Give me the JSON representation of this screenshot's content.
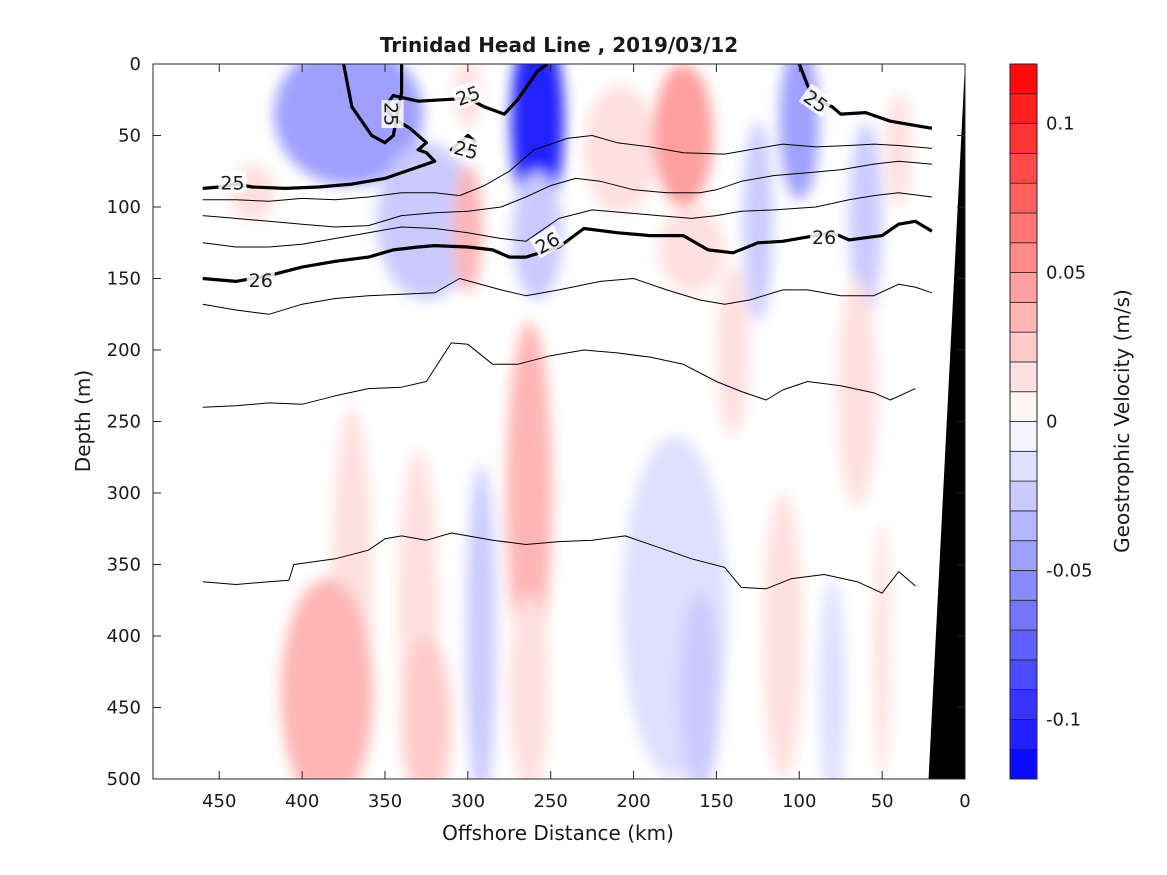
{
  "chart_data": {
    "type": "heatmap",
    "title": "Trinidad Head Line , 2019/03/12",
    "xlabel": "Offshore Distance (km)",
    "ylabel": "Depth (m)",
    "xlim": [
      490,
      0
    ],
    "ylim": [
      0,
      500
    ],
    "x_reversed": true,
    "y_reversed": true,
    "x_ticks": [
      450,
      400,
      350,
      300,
      250,
      200,
      150,
      100,
      50,
      0
    ],
    "y_ticks": [
      0,
      50,
      100,
      150,
      200,
      250,
      300,
      350,
      400,
      450,
      500
    ],
    "colorbar": {
      "label": "Geostrophic Velocity (m/s)",
      "range": [
        -0.12,
        0.12
      ],
      "levels": 24,
      "ticks": [
        {
          "value": 0.1,
          "label": "0.1"
        },
        {
          "value": 0.05,
          "label": "0.05"
        },
        {
          "value": 0,
          "label": "0"
        },
        {
          "value": -0.05,
          "label": "-0.05"
        },
        {
          "value": -0.1,
          "label": "-0.1"
        }
      ],
      "positive_color": "#ff0000",
      "negative_color": "#0000ff",
      "zero_color": "#ffffff"
    },
    "velocity_features": [
      {
        "x": 372,
        "depth": 35,
        "rx": 45,
        "rdepth": 50,
        "value": -0.045
      },
      {
        "x": 325,
        "depth": 110,
        "rx": 30,
        "rdepth": 55,
        "value": -0.02
      },
      {
        "x": 300,
        "depth": 115,
        "rx": 9,
        "rdepth": 45,
        "value": 0.03
      },
      {
        "x": 300,
        "depth": 20,
        "rx": 8,
        "rdepth": 25,
        "value": 0.015
      },
      {
        "x": 258,
        "depth": 40,
        "rx": 16,
        "rdepth": 70,
        "value": -0.1
      },
      {
        "x": 258,
        "depth": 120,
        "rx": 15,
        "rdepth": 45,
        "value": -0.03
      },
      {
        "x": 208,
        "depth": 60,
        "rx": 22,
        "rdepth": 45,
        "value": 0.02
      },
      {
        "x": 170,
        "depth": 50,
        "rx": 18,
        "rdepth": 50,
        "value": 0.05
      },
      {
        "x": 165,
        "depth": 130,
        "rx": 20,
        "rdepth": 30,
        "value": 0.015
      },
      {
        "x": 125,
        "depth": 110,
        "rx": 9,
        "rdepth": 70,
        "value": -0.02
      },
      {
        "x": 100,
        "depth": 40,
        "rx": 12,
        "rdepth": 55,
        "value": -0.04
      },
      {
        "x": 60,
        "depth": 110,
        "rx": 10,
        "rdepth": 70,
        "value": -0.03
      },
      {
        "x": 40,
        "depth": 60,
        "rx": 8,
        "rdepth": 40,
        "value": 0.02
      },
      {
        "x": 263,
        "depth": 300,
        "rx": 14,
        "rdepth": 120,
        "value": 0.035
      },
      {
        "x": 263,
        "depth": 440,
        "rx": 12,
        "rdepth": 70,
        "value": 0.02
      },
      {
        "x": 370,
        "depth": 360,
        "rx": 12,
        "rdepth": 120,
        "value": 0.015
      },
      {
        "x": 385,
        "depth": 440,
        "rx": 28,
        "rdepth": 80,
        "value": 0.03
      },
      {
        "x": 330,
        "depth": 380,
        "rx": 12,
        "rdepth": 110,
        "value": 0.015
      },
      {
        "x": 325,
        "depth": 460,
        "rx": 15,
        "rdepth": 60,
        "value": 0.025
      },
      {
        "x": 292,
        "depth": 400,
        "rx": 9,
        "rdepth": 120,
        "value": -0.02
      },
      {
        "x": 175,
        "depth": 380,
        "rx": 32,
        "rdepth": 120,
        "value": -0.015
      },
      {
        "x": 160,
        "depth": 440,
        "rx": 12,
        "rdepth": 70,
        "value": -0.03
      },
      {
        "x": 110,
        "depth": 400,
        "rx": 12,
        "rdepth": 100,
        "value": 0.02
      },
      {
        "x": 80,
        "depth": 440,
        "rx": 8,
        "rdepth": 80,
        "value": -0.015
      },
      {
        "x": 50,
        "depth": 410,
        "rx": 5,
        "rdepth": 90,
        "value": 0.015
      },
      {
        "x": 140,
        "depth": 200,
        "rx": 10,
        "rdepth": 60,
        "value": 0.015
      },
      {
        "x": 65,
        "depth": 230,
        "rx": 12,
        "rdepth": 80,
        "value": 0.015
      },
      {
        "x": 430,
        "depth": 90,
        "rx": 14,
        "rdepth": 20,
        "value": 0.012
      }
    ],
    "density_contours": [
      {
        "level": "25",
        "bold": true,
        "labeled": true,
        "points": [
          [
            340,
            0
          ],
          [
            340,
            20
          ],
          [
            345,
            50
          ],
          [
            350,
            55
          ],
          [
            358,
            50
          ],
          [
            370,
            30
          ],
          [
            375,
            0
          ]
        ]
      },
      {
        "level": "25",
        "bold": true,
        "labeled": true,
        "points": [
          [
            460,
            87
          ],
          [
            450,
            86
          ],
          [
            440,
            84
          ],
          [
            430,
            86
          ],
          [
            410,
            87
          ],
          [
            390,
            86
          ],
          [
            370,
            84
          ],
          [
            350,
            80
          ],
          [
            330,
            72
          ],
          [
            320,
            68
          ],
          [
            325,
            62
          ],
          [
            330,
            60
          ],
          [
            325,
            55
          ],
          [
            335,
            45
          ],
          [
            345,
            38
          ],
          [
            350,
            30
          ],
          [
            345,
            22
          ],
          [
            330,
            26
          ],
          [
            300,
            24
          ],
          [
            290,
            30
          ],
          [
            278,
            35
          ],
          [
            270,
            25
          ],
          [
            258,
            5
          ],
          [
            252,
            0
          ]
        ]
      },
      {
        "level": "25",
        "bold": true,
        "labeled": true,
        "points": [
          [
            295,
            55
          ],
          [
            300,
            50
          ],
          [
            305,
            55
          ],
          [
            310,
            60
          ],
          [
            295,
            60
          ]
        ]
      },
      {
        "level": "25",
        "bold": true,
        "labeled": true,
        "points": [
          [
            100,
            0
          ],
          [
            95,
            15
          ],
          [
            90,
            25
          ],
          [
            80,
            30
          ],
          [
            75,
            35
          ],
          [
            60,
            34
          ],
          [
            45,
            40
          ],
          [
            35,
            42
          ],
          [
            20,
            45
          ]
        ]
      },
      {
        "level": "26",
        "bold": true,
        "labeled": true,
        "points": [
          [
            460,
            150
          ],
          [
            440,
            152
          ],
          [
            420,
            148
          ],
          [
            400,
            142
          ],
          [
            380,
            138
          ],
          [
            360,
            135
          ],
          [
            345,
            130
          ],
          [
            330,
            128
          ],
          [
            320,
            127
          ],
          [
            300,
            128
          ],
          [
            285,
            130
          ],
          [
            275,
            135
          ],
          [
            265,
            135
          ],
          [
            245,
            128
          ],
          [
            230,
            115
          ],
          [
            210,
            118
          ],
          [
            190,
            120
          ],
          [
            170,
            120
          ],
          [
            155,
            130
          ],
          [
            140,
            132
          ],
          [
            125,
            125
          ],
          [
            110,
            124
          ],
          [
            90,
            120
          ],
          [
            80,
            118
          ],
          [
            70,
            123
          ],
          [
            50,
            120
          ],
          [
            40,
            112
          ],
          [
            30,
            110
          ],
          [
            20,
            117
          ]
        ]
      },
      {
        "level": "",
        "bold": false,
        "labeled": false,
        "points": [
          [
            460,
            95
          ],
          [
            440,
            95
          ],
          [
            420,
            96
          ],
          [
            400,
            94
          ],
          [
            380,
            95
          ],
          [
            360,
            93
          ],
          [
            340,
            90
          ],
          [
            320,
            90
          ],
          [
            305,
            92
          ],
          [
            290,
            85
          ],
          [
            275,
            75
          ],
          [
            260,
            60
          ],
          [
            240,
            52
          ],
          [
            225,
            50
          ],
          [
            210,
            55
          ],
          [
            190,
            58
          ],
          [
            170,
            62
          ],
          [
            145,
            63
          ],
          [
            130,
            60
          ],
          [
            110,
            56
          ],
          [
            90,
            58
          ],
          [
            70,
            57
          ],
          [
            55,
            56
          ],
          [
            40,
            57
          ],
          [
            20,
            59
          ]
        ]
      },
      {
        "level": "",
        "bold": false,
        "labeled": false,
        "points": [
          [
            460,
            106
          ],
          [
            440,
            108
          ],
          [
            420,
            110
          ],
          [
            400,
            112
          ],
          [
            380,
            114
          ],
          [
            360,
            113
          ],
          [
            340,
            106
          ],
          [
            320,
            104
          ],
          [
            300,
            103
          ],
          [
            280,
            100
          ],
          [
            265,
            93
          ],
          [
            250,
            85
          ],
          [
            235,
            80
          ],
          [
            220,
            82
          ],
          [
            200,
            88
          ],
          [
            180,
            90
          ],
          [
            160,
            90
          ],
          [
            150,
            88
          ],
          [
            135,
            82
          ],
          [
            115,
            78
          ],
          [
            95,
            76
          ],
          [
            75,
            74
          ],
          [
            55,
            70
          ],
          [
            40,
            68
          ],
          [
            20,
            70
          ]
        ]
      },
      {
        "level": "",
        "bold": false,
        "labeled": false,
        "points": [
          [
            460,
            125
          ],
          [
            440,
            128
          ],
          [
            420,
            128
          ],
          [
            400,
            126
          ],
          [
            380,
            122
          ],
          [
            360,
            118
          ],
          [
            340,
            114
          ],
          [
            320,
            115
          ],
          [
            300,
            118
          ],
          [
            280,
            122
          ],
          [
            265,
            124
          ],
          [
            245,
            108
          ],
          [
            225,
            102
          ],
          [
            205,
            104
          ],
          [
            185,
            106
          ],
          [
            165,
            108
          ],
          [
            150,
            106
          ],
          [
            135,
            103
          ],
          [
            115,
            102
          ],
          [
            90,
            100
          ],
          [
            70,
            95
          ],
          [
            55,
            92
          ],
          [
            40,
            90
          ],
          [
            20,
            93
          ]
        ]
      },
      {
        "level": "",
        "bold": false,
        "labeled": false,
        "points": [
          [
            460,
            168
          ],
          [
            440,
            172
          ],
          [
            420,
            175
          ],
          [
            400,
            168
          ],
          [
            380,
            164
          ],
          [
            360,
            162
          ],
          [
            340,
            161
          ],
          [
            320,
            160
          ],
          [
            305,
            150
          ],
          [
            280,
            158
          ],
          [
            265,
            162
          ],
          [
            245,
            158
          ],
          [
            220,
            152
          ],
          [
            200,
            150
          ],
          [
            180,
            158
          ],
          [
            160,
            165
          ],
          [
            145,
            168
          ],
          [
            130,
            165
          ],
          [
            110,
            158
          ],
          [
            95,
            158
          ],
          [
            75,
            162
          ],
          [
            55,
            162
          ],
          [
            40,
            154
          ],
          [
            30,
            156
          ],
          [
            20,
            160
          ]
        ]
      },
      {
        "level": "",
        "bold": false,
        "labeled": false,
        "points": [
          [
            460,
            240
          ],
          [
            440,
            239
          ],
          [
            420,
            237
          ],
          [
            400,
            238
          ],
          [
            380,
            232
          ],
          [
            360,
            227
          ],
          [
            340,
            226
          ],
          [
            325,
            222
          ],
          [
            310,
            195
          ],
          [
            300,
            196
          ],
          [
            285,
            210
          ],
          [
            270,
            210
          ],
          [
            250,
            204
          ],
          [
            230,
            200
          ],
          [
            210,
            202
          ],
          [
            190,
            205
          ],
          [
            170,
            210
          ],
          [
            150,
            222
          ],
          [
            135,
            229
          ],
          [
            120,
            235
          ],
          [
            110,
            228
          ],
          [
            95,
            222
          ],
          [
            75,
            225
          ],
          [
            55,
            230
          ],
          [
            45,
            235
          ],
          [
            30,
            227
          ]
        ]
      },
      {
        "level": "",
        "bold": false,
        "labeled": false,
        "points": [
          [
            460,
            362
          ],
          [
            440,
            364
          ],
          [
            420,
            362
          ],
          [
            408,
            361
          ],
          [
            405,
            350
          ],
          [
            380,
            346
          ],
          [
            360,
            340
          ],
          [
            350,
            332
          ],
          [
            340,
            330
          ],
          [
            325,
            333
          ],
          [
            310,
            328
          ],
          [
            300,
            330
          ],
          [
            285,
            333
          ],
          [
            265,
            336
          ],
          [
            245,
            334
          ],
          [
            225,
            333
          ],
          [
            205,
            330
          ],
          [
            185,
            338
          ],
          [
            165,
            346
          ],
          [
            145,
            352
          ],
          [
            135,
            366
          ],
          [
            120,
            367
          ],
          [
            105,
            360
          ],
          [
            85,
            357
          ],
          [
            65,
            362
          ],
          [
            50,
            370
          ],
          [
            40,
            355
          ],
          [
            30,
            365
          ]
        ]
      }
    ],
    "contour_labels": [
      {
        "text": "25",
        "x": 346,
        "depth": 35,
        "angle": 90
      },
      {
        "text": "25",
        "x": 300,
        "depth": 22,
        "angle": -20
      },
      {
        "text": "25",
        "x": 301,
        "depth": 60,
        "angle": 15
      },
      {
        "text": "25",
        "x": 90,
        "depth": 26,
        "angle": 35
      },
      {
        "text": "25",
        "x": 442,
        "depth": 83,
        "angle": 0
      },
      {
        "text": "26",
        "x": 252,
        "depth": 125,
        "angle": -30
      },
      {
        "text": "26",
        "x": 425,
        "depth": 151,
        "angle": 0
      },
      {
        "text": "26",
        "x": 85,
        "depth": 121,
        "angle": 0
      }
    ],
    "bathymetry": [
      [
        22,
        500
      ],
      [
        0,
        0
      ],
      [
        0,
        500
      ]
    ]
  }
}
